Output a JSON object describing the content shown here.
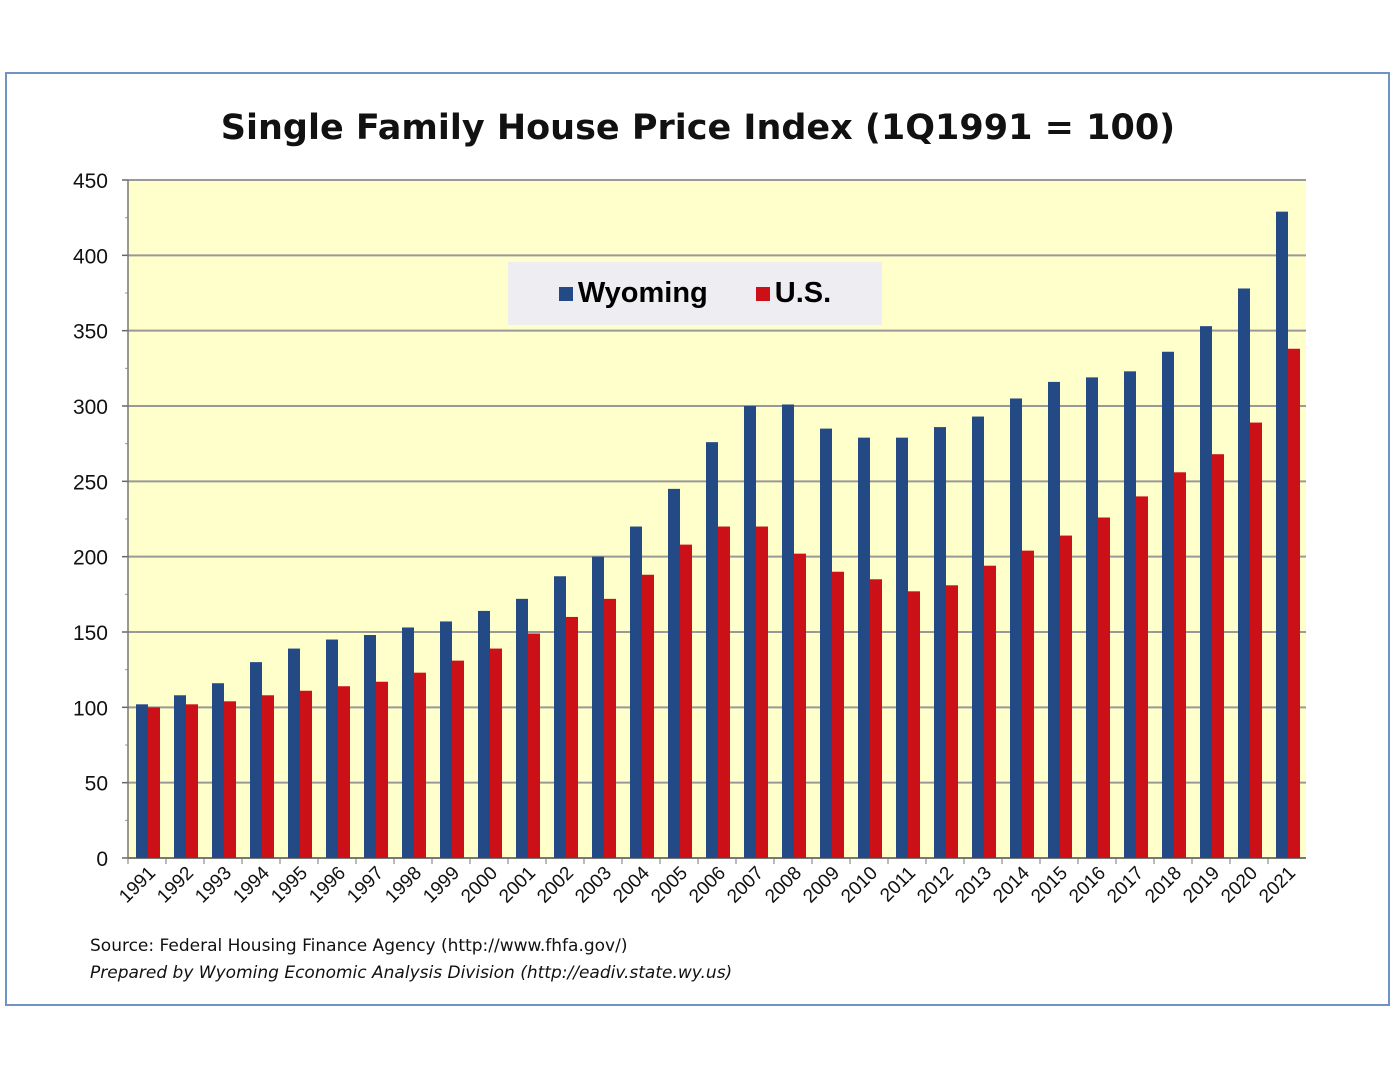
{
  "chart_data": {
    "type": "bar",
    "title": "Single Family House Price Index (1Q1991 = 100)",
    "xlabel": "",
    "ylabel": "",
    "ylim": [
      0,
      450
    ],
    "yticks": [
      0,
      50,
      100,
      150,
      200,
      250,
      300,
      350,
      400,
      450
    ],
    "grid": true,
    "legend_placement": "top-center",
    "categories": [
      "1991",
      "1992",
      "1993",
      "1994",
      "1995",
      "1996",
      "1997",
      "1998",
      "1999",
      "2000",
      "2001",
      "2002",
      "2003",
      "2004",
      "2005",
      "2006",
      "2007",
      "2008",
      "2009",
      "2010",
      "2011",
      "2012",
      "2013",
      "2014",
      "2015",
      "2016",
      "2017",
      "2018",
      "2019",
      "2020",
      "2021"
    ],
    "series": [
      {
        "name": "Wyoming",
        "color": "#234a85",
        "values": [
          102,
          108,
          116,
          130,
          139,
          145,
          148,
          153,
          157,
          164,
          172,
          187,
          200,
          220,
          245,
          276,
          300,
          301,
          285,
          279,
          279,
          286,
          293,
          305,
          316,
          319,
          323,
          336,
          353,
          378,
          429
        ]
      },
      {
        "name": "U.S.",
        "color": "#cc1018",
        "values": [
          100,
          102,
          104,
          108,
          111,
          114,
          117,
          123,
          131,
          139,
          149,
          160,
          172,
          188,
          208,
          220,
          220,
          202,
          190,
          185,
          177,
          181,
          194,
          204,
          214,
          226,
          240,
          256,
          268,
          289,
          338
        ]
      }
    ],
    "plot_background": "#ffffcc"
  },
  "source": {
    "line1": "Source: Federal Housing Finance Agency (http://www.fhfa.gov/)",
    "line2": "Prepared by Wyoming Economic Analysis Division (http://eadiv.state.wy.us)"
  }
}
